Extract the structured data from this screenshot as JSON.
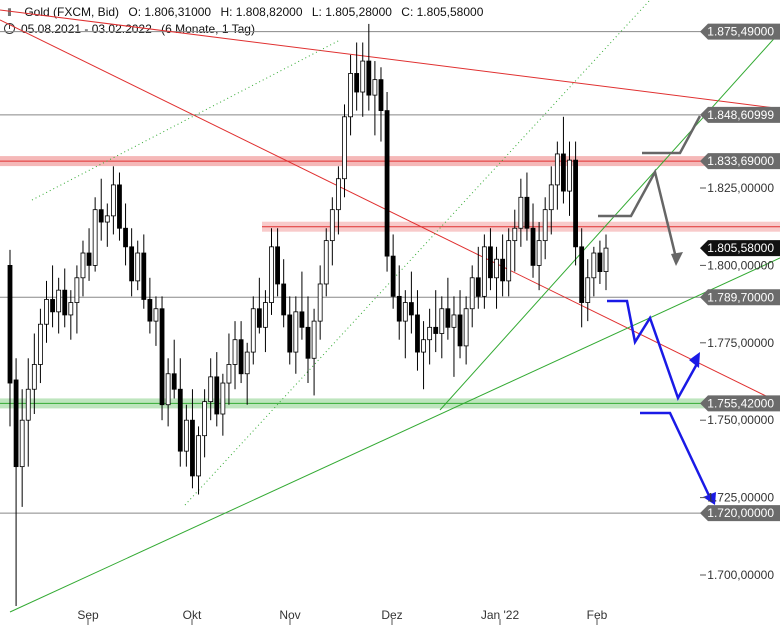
{
  "header": {
    "icon": "candlestick-icon",
    "instrument": "Gold (FXCM, Bid)",
    "open": "O: 1.806,31000",
    "high": "H: 1.808,82000",
    "low": "L: 1.805,28000",
    "close": "C: 1.805,58000",
    "range": "05.08.2021 - 03.02.2022",
    "period": "(6 Monate, 1 Tag)"
  },
  "chart_data": {
    "type": "candlestick",
    "x_tick_labels": [
      "Sep",
      "Okt",
      "Nov",
      "Dez",
      "Jan '22",
      "Feb"
    ],
    "y_tick_labels": [
      "1.825,00000",
      "1.800,00000",
      "1.775,00000",
      "1.750,00000",
      "1.725,00000",
      "1.700,00000"
    ],
    "y_ticks": [
      1825,
      1800,
      1775,
      1750,
      1725,
      1700
    ],
    "ylim": [
      1691,
      1886
    ],
    "price_labels": [
      {
        "text": "1.875,49000",
        "value": 1875.49,
        "style": "gray"
      },
      {
        "text": "1.848,60999",
        "value": 1848.61,
        "style": "gray"
      },
      {
        "text": "1.833,69000",
        "value": 1833.69,
        "style": "gray"
      },
      {
        "text": "1.805,58000",
        "value": 1805.58,
        "style": "black"
      },
      {
        "text": "1.789,70000",
        "value": 1789.7,
        "style": "gray"
      },
      {
        "text": "1.755,42000",
        "value": 1755.42,
        "style": "gray"
      },
      {
        "text": "1.720,00000",
        "value": 1720.0,
        "style": "gray"
      }
    ],
    "horizontal_lines": [
      1875.49,
      1848.61,
      1789.7,
      1720.0
    ],
    "zones": [
      {
        "value": 1833.69,
        "color": "#f2a0a0"
      },
      {
        "value": 1812.5,
        "color": "#f5b8b8",
        "from_date": "2021-10-25"
      },
      {
        "value": 1755.42,
        "color": "#a8dca8"
      }
    ],
    "colors": {
      "up": "#ffffff",
      "down": "#000000",
      "trend_red": "#e03030",
      "trend_green": "#33aa33",
      "scenario_gray": "#666666",
      "scenario_blue": "#1a1ae6"
    },
    "candles_ohlc": [
      [
        1800,
        1805,
        1748,
        1762
      ],
      [
        1763,
        1770,
        1690,
        1735
      ],
      [
        1735,
        1760,
        1722,
        1750
      ],
      [
        1750,
        1770,
        1735,
        1760
      ],
      [
        1760,
        1778,
        1752,
        1768
      ],
      [
        1768,
        1786,
        1762,
        1781
      ],
      [
        1781,
        1795,
        1775,
        1789
      ],
      [
        1789,
        1800,
        1780,
        1785
      ],
      [
        1785,
        1796,
        1778,
        1792
      ],
      [
        1792,
        1799,
        1780,
        1784
      ],
      [
        1784,
        1792,
        1776,
        1788
      ],
      [
        1788,
        1800,
        1778,
        1796
      ],
      [
        1796,
        1808,
        1790,
        1804
      ],
      [
        1804,
        1812,
        1795,
        1800
      ],
      [
        1800,
        1822,
        1798,
        1818
      ],
      [
        1818,
        1828,
        1808,
        1814
      ],
      [
        1814,
        1820,
        1806,
        1816
      ],
      [
        1816,
        1832,
        1810,
        1826
      ],
      [
        1826,
        1830,
        1808,
        1812
      ],
      [
        1812,
        1820,
        1800,
        1806
      ],
      [
        1806,
        1812,
        1790,
        1795
      ],
      [
        1795,
        1808,
        1792,
        1804
      ],
      [
        1804,
        1810,
        1786,
        1789
      ],
      [
        1789,
        1796,
        1778,
        1782
      ],
      [
        1782,
        1790,
        1774,
        1786
      ],
      [
        1786,
        1790,
        1750,
        1755
      ],
      [
        1755,
        1770,
        1748,
        1765
      ],
      [
        1765,
        1776,
        1757,
        1760
      ],
      [
        1760,
        1770,
        1735,
        1740
      ],
      [
        1740,
        1755,
        1735,
        1750
      ],
      [
        1750,
        1760,
        1728,
        1732
      ],
      [
        1732,
        1748,
        1726,
        1745
      ],
      [
        1745,
        1760,
        1738,
        1756
      ],
      [
        1756,
        1770,
        1750,
        1764
      ],
      [
        1764,
        1772,
        1748,
        1752
      ],
      [
        1752,
        1765,
        1745,
        1762
      ],
      [
        1762,
        1778,
        1755,
        1768
      ],
      [
        1768,
        1782,
        1760,
        1776
      ],
      [
        1776,
        1782,
        1762,
        1765
      ],
      [
        1765,
        1775,
        1755,
        1772
      ],
      [
        1772,
        1790,
        1768,
        1786
      ],
      [
        1786,
        1796,
        1778,
        1780
      ],
      [
        1780,
        1792,
        1772,
        1788
      ],
      [
        1788,
        1812,
        1784,
        1806
      ],
      [
        1806,
        1812,
        1790,
        1794
      ],
      [
        1794,
        1802,
        1780,
        1784
      ],
      [
        1784,
        1790,
        1768,
        1772
      ],
      [
        1772,
        1790,
        1765,
        1785
      ],
      [
        1785,
        1798,
        1776,
        1780
      ],
      [
        1780,
        1790,
        1762,
        1770
      ],
      [
        1770,
        1786,
        1758,
        1782
      ],
      [
        1782,
        1800,
        1776,
        1794
      ],
      [
        1794,
        1812,
        1790,
        1808
      ],
      [
        1808,
        1822,
        1800,
        1818
      ],
      [
        1818,
        1832,
        1810,
        1828
      ],
      [
        1828,
        1852,
        1822,
        1848
      ],
      [
        1848,
        1868,
        1842,
        1862
      ],
      [
        1862,
        1872,
        1850,
        1856
      ],
      [
        1856,
        1872,
        1848,
        1866
      ],
      [
        1866,
        1878,
        1850,
        1855
      ],
      [
        1855,
        1866,
        1842,
        1860
      ],
      [
        1860,
        1864,
        1840,
        1850
      ],
      [
        1850,
        1856,
        1798,
        1803
      ],
      [
        1803,
        1810,
        1786,
        1790
      ],
      [
        1790,
        1800,
        1776,
        1782
      ],
      [
        1782,
        1792,
        1770,
        1788
      ],
      [
        1788,
        1798,
        1778,
        1784
      ],
      [
        1784,
        1792,
        1766,
        1772
      ],
      [
        1772,
        1782,
        1760,
        1776
      ],
      [
        1776,
        1786,
        1768,
        1780
      ],
      [
        1780,
        1792,
        1772,
        1778
      ],
      [
        1778,
        1790,
        1770,
        1786
      ],
      [
        1786,
        1796,
        1776,
        1780
      ],
      [
        1780,
        1790,
        1764,
        1784
      ],
      [
        1784,
        1792,
        1770,
        1774
      ],
      [
        1774,
        1790,
        1768,
        1786
      ],
      [
        1786,
        1800,
        1780,
        1796
      ],
      [
        1796,
        1806,
        1786,
        1790
      ],
      [
        1790,
        1810,
        1786,
        1806
      ],
      [
        1806,
        1812,
        1792,
        1796
      ],
      [
        1796,
        1806,
        1786,
        1802
      ],
      [
        1802,
        1810,
        1790,
        1795
      ],
      [
        1795,
        1812,
        1790,
        1808
      ],
      [
        1808,
        1818,
        1798,
        1812
      ],
      [
        1812,
        1828,
        1806,
        1822
      ],
      [
        1822,
        1830,
        1808,
        1812
      ],
      [
        1812,
        1820,
        1796,
        1800
      ],
      [
        1800,
        1814,
        1792,
        1808
      ],
      [
        1808,
        1822,
        1802,
        1818
      ],
      [
        1818,
        1832,
        1810,
        1826
      ],
      [
        1826,
        1840,
        1818,
        1836
      ],
      [
        1836,
        1848,
        1820,
        1824
      ],
      [
        1824,
        1840,
        1816,
        1834
      ],
      [
        1834,
        1840,
        1800,
        1806
      ],
      [
        1806,
        1812,
        1780,
        1788
      ],
      [
        1788,
        1802,
        1782,
        1796
      ],
      [
        1796,
        1806,
        1790,
        1804
      ],
      [
        1804,
        1808,
        1794,
        1798
      ],
      [
        1798,
        1810,
        1792,
        1805.58
      ]
    ]
  }
}
